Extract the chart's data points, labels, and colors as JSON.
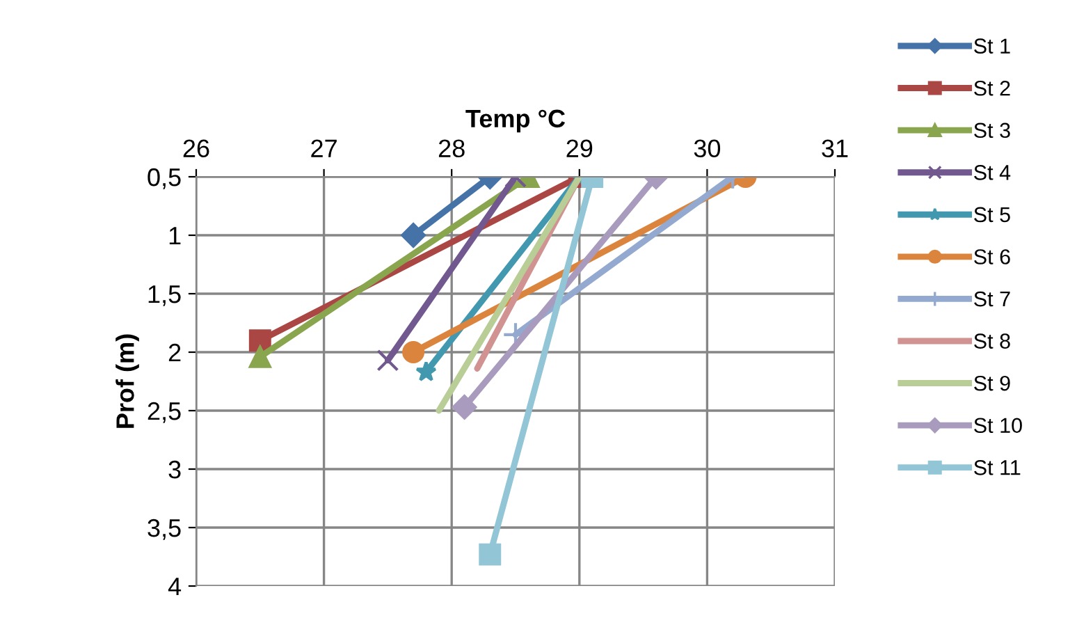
{
  "chart_data": {
    "type": "line",
    "xlabel": "Temp °C",
    "ylabel": "Prof (m)",
    "xlim": [
      26,
      31
    ],
    "xticks": [
      26,
      27,
      28,
      29,
      30,
      31
    ],
    "ylim": [
      4,
      0.5
    ],
    "yticks": [
      {
        "value": 0.5,
        "label": "0,5"
      },
      1,
      {
        "value": 1.5,
        "label": "1,5"
      },
      2,
      {
        "value": 2.5,
        "label": "2,5"
      },
      3,
      {
        "value": 3.5,
        "label": "3,5"
      },
      4
    ],
    "grid": true,
    "legend": "right",
    "series": [
      {
        "name": "St 1",
        "color": "#4572a7",
        "marker": "diamond",
        "x": [
          28.3,
          27.7
        ],
        "values": [
          0.5,
          1.0
        ]
      },
      {
        "name": "St 2",
        "color": "#aa4643",
        "marker": "square",
        "x": [
          29.0,
          26.5
        ],
        "values": [
          0.5,
          1.9
        ]
      },
      {
        "name": "St 3",
        "color": "#89a54e",
        "marker": "triangle",
        "x": [
          28.6,
          26.5
        ],
        "values": [
          0.5,
          2.04
        ]
      },
      {
        "name": "St 4",
        "color": "#71588f",
        "marker": "cross",
        "x": [
          28.5,
          27.5
        ],
        "values": [
          0.5,
          2.07
        ]
      },
      {
        "name": "St 5",
        "color": "#4198af",
        "marker": "star",
        "x": [
          29.0,
          27.8
        ],
        "values": [
          0.5,
          2.17
        ]
      },
      {
        "name": "St 6",
        "color": "#db843d",
        "marker": "circle",
        "x": [
          30.3,
          27.7
        ],
        "values": [
          0.5,
          2.0
        ]
      },
      {
        "name": "St 7",
        "color": "#93a9cf",
        "marker": "plus",
        "x": [
          30.2,
          28.5
        ],
        "values": [
          0.5,
          1.85
        ]
      },
      {
        "name": "St 8",
        "color": "#d19392",
        "marker": "none",
        "x": [
          29.0,
          28.2
        ],
        "values": [
          0.5,
          2.14
        ]
      },
      {
        "name": "St 9",
        "color": "#b9cd96",
        "marker": "none",
        "x": [
          29.0,
          27.9
        ],
        "values": [
          0.5,
          2.5
        ]
      },
      {
        "name": "St 10",
        "color": "#a99bbd",
        "marker": "diamond",
        "x": [
          29.6,
          28.1
        ],
        "values": [
          0.5,
          2.47
        ]
      },
      {
        "name": "St 11",
        "color": "#92c5d6",
        "marker": "square",
        "x": [
          29.1,
          28.3
        ],
        "values": [
          0.5,
          3.73
        ]
      }
    ]
  }
}
